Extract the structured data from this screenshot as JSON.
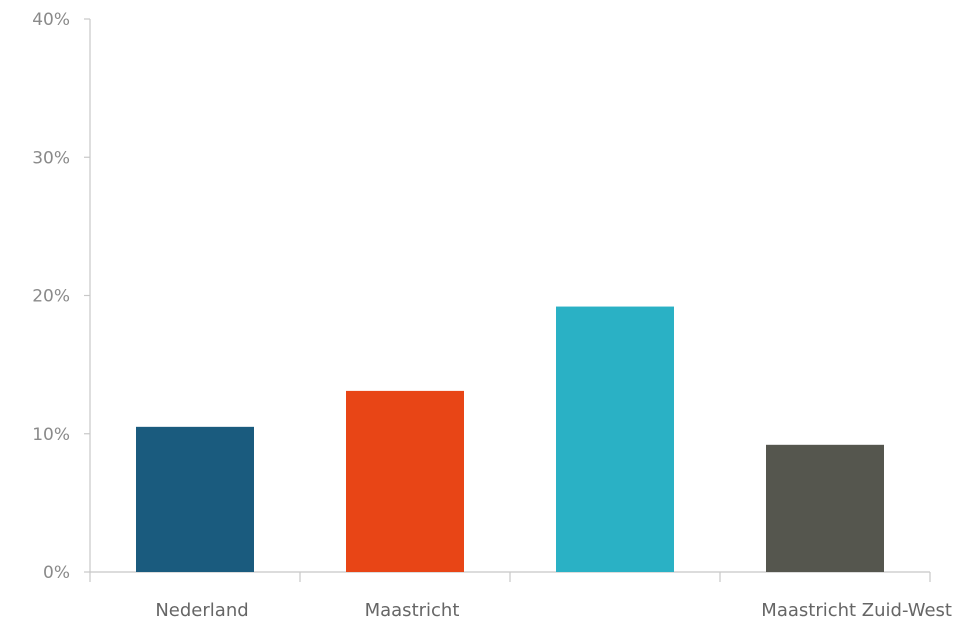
{
  "chart_data": {
    "type": "bar",
    "categories": [
      "Nederland",
      "Maastricht",
      "",
      "Maastricht Zuid-West"
    ],
    "values": [
      10.5,
      13.1,
      19.2,
      9.2
    ],
    "colors": [
      "#1a5b7e",
      "#e84516",
      "#2ab1c5",
      "#55564e"
    ],
    "ylim": [
      0,
      40
    ],
    "yticks": [
      0,
      10,
      20,
      30,
      40
    ],
    "ytick_labels": [
      "0%",
      "10%",
      "20%",
      "30%",
      "40%"
    ],
    "grid": false,
    "title": "",
    "xlabel": "",
    "ylabel": ""
  }
}
